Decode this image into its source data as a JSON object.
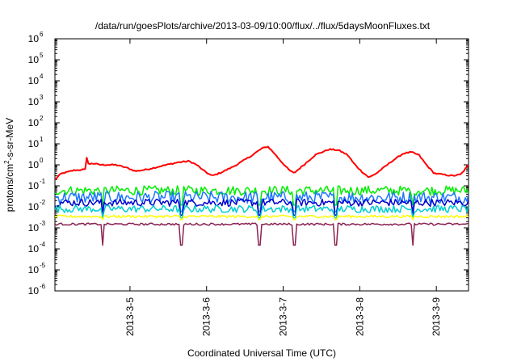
{
  "chart_data": {
    "type": "line",
    "title": "/data/run/goesPlots/archive/2013-03-09/10:00/flux/../flux/5daysMoonFluxes.txt",
    "xlabel": "Coordinated Universal Time (UTC)",
    "ylabel": "protons/cm2-s-sr-MeV",
    "ylabel_parts": {
      "before": "protons/cm",
      "sup": "2",
      "after": "-s-sr-MeV"
    },
    "y_scale": "log",
    "ylim": [
      1e-06,
      1000000.0
    ],
    "y_ticks": [
      {
        "base": "10",
        "exp": "-6",
        "value": 1e-06
      },
      {
        "base": "10",
        "exp": "-5",
        "value": 1e-05
      },
      {
        "base": "10",
        "exp": "-4",
        "value": 0.0001
      },
      {
        "base": "10",
        "exp": "-3",
        "value": 0.001
      },
      {
        "base": "10",
        "exp": "-2",
        "value": 0.01
      },
      {
        "base": "10",
        "exp": "-1",
        "value": 0.1
      },
      {
        "base": "10",
        "exp": "0",
        "value": 1
      },
      {
        "base": "10",
        "exp": "1",
        "value": 10
      },
      {
        "base": "10",
        "exp": "2",
        "value": 100
      },
      {
        "base": "10",
        "exp": "3",
        "value": 1000
      },
      {
        "base": "10",
        "exp": "4",
        "value": 10000
      },
      {
        "base": "10",
        "exp": "5",
        "value": 100000
      },
      {
        "base": "10",
        "exp": "6",
        "value": 1000000
      }
    ],
    "x_axis": {
      "unit": "days",
      "min_days": 0.0,
      "max_days": 5.4
    },
    "x_ticks": [
      {
        "label": "2013-3-5",
        "day": 0.98
      },
      {
        "label": "2013-3-6",
        "day": 1.98
      },
      {
        "label": "2013-3-7",
        "day": 2.98
      },
      {
        "label": "2013-3-8",
        "day": 3.98
      },
      {
        "label": "2013-3-9",
        "day": 4.98
      }
    ],
    "grid": false,
    "legend": "none",
    "series": [
      {
        "color": "#ff0000",
        "width": 2,
        "noise": 0.06,
        "points": [
          [
            0.0,
            0.2
          ],
          [
            0.08,
            0.38
          ],
          [
            0.25,
            0.55
          ],
          [
            0.4,
            0.6
          ],
          [
            0.42,
            3.5
          ],
          [
            0.44,
            0.9
          ],
          [
            0.47,
            1.2
          ],
          [
            0.6,
            1.0
          ],
          [
            0.8,
            1.0
          ],
          [
            0.95,
            0.7
          ],
          [
            1.05,
            0.5
          ],
          [
            1.2,
            0.6
          ],
          [
            1.4,
            0.9
          ],
          [
            1.6,
            1.3
          ],
          [
            1.75,
            1.5
          ],
          [
            1.85,
            1.0
          ],
          [
            1.95,
            0.5
          ],
          [
            2.05,
            0.3
          ],
          [
            2.15,
            0.4
          ],
          [
            2.35,
            0.9
          ],
          [
            2.55,
            2.5
          ],
          [
            2.7,
            6.0
          ],
          [
            2.78,
            7.5
          ],
          [
            2.85,
            4.0
          ],
          [
            2.95,
            1.5
          ],
          [
            3.05,
            0.6
          ],
          [
            3.12,
            0.4
          ],
          [
            3.25,
            1.0
          ],
          [
            3.4,
            3.0
          ],
          [
            3.58,
            5.5
          ],
          [
            3.7,
            5.0
          ],
          [
            3.82,
            3.0
          ],
          [
            3.9,
            1.2
          ],
          [
            4.0,
            0.5
          ],
          [
            4.1,
            0.25
          ],
          [
            4.2,
            0.4
          ],
          [
            4.4,
            1.5
          ],
          [
            4.55,
            3.5
          ],
          [
            4.65,
            4.0
          ],
          [
            4.75,
            3.0
          ],
          [
            4.85,
            1.0
          ],
          [
            4.95,
            0.4
          ],
          [
            5.05,
            0.35
          ],
          [
            5.2,
            0.3
          ],
          [
            5.3,
            0.35
          ],
          [
            5.4,
            1.0
          ]
        ]
      },
      {
        "color": "#00ee00",
        "width": 1.5,
        "base": 0.06,
        "noise": 0.45,
        "dips": 0.012
      },
      {
        "color": "#1e78ff",
        "width": 1.5,
        "base": 0.028,
        "noise": 0.6,
        "dips": 0.006
      },
      {
        "color": "#0000cd",
        "width": 1.5,
        "base": 0.016,
        "noise": 0.35,
        "dips": 0.004
      },
      {
        "color": "#00cdcd",
        "width": 1.5,
        "base": 0.008,
        "noise": 0.35,
        "dips": 0.003
      },
      {
        "color": "#ffff00",
        "width": 1.5,
        "base": 0.0035,
        "noise": 0.12,
        "dips": 0.0025
      },
      {
        "color": "#8b2252",
        "width": 1.5,
        "base": 0.0015,
        "noise": 0.1,
        "dips": 0.00015
      }
    ],
    "dip_days": [
      0.62,
      1.65,
      2.67,
      3.12,
      3.67,
      4.67
    ]
  }
}
